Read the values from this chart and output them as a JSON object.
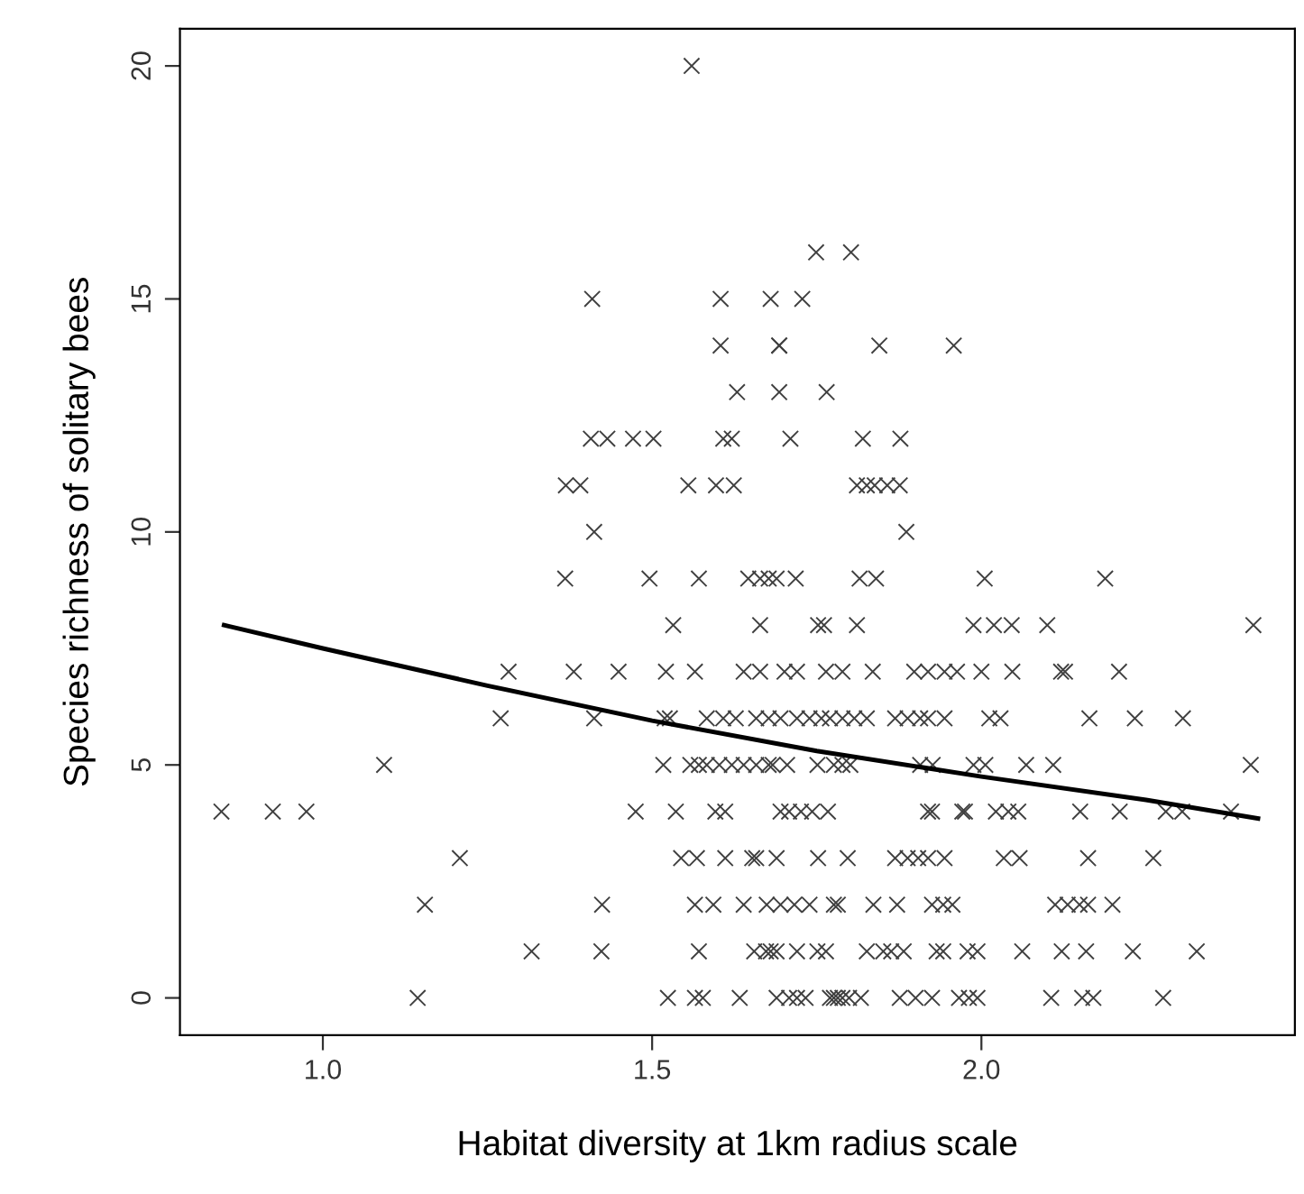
{
  "chart_data": {
    "type": "scatter",
    "xlabel": "Habitat diversity at 1km radius scale",
    "ylabel": "Species richness of solitary bees",
    "xlim": [
      0.783,
      2.476
    ],
    "ylim": [
      -0.8,
      20.8
    ],
    "xticks": [
      {
        "value": 1.0,
        "label": "1.0"
      },
      {
        "value": 1.5,
        "label": "1.5"
      },
      {
        "value": 2.0,
        "label": "2.0"
      }
    ],
    "yticks": [
      0,
      5,
      10,
      15,
      20
    ],
    "grid": false,
    "legend": false,
    "series": [
      {
        "marker": "cross",
        "color": "#404040",
        "x": [
          1.56,
          1.749,
          1.802,
          1.409,
          1.604,
          1.68,
          1.728,
          1.604,
          1.693,
          1.693,
          1.845,
          1.958,
          1.629,
          1.693,
          1.765,
          1.407,
          1.432,
          1.471,
          1.502,
          1.608,
          1.621,
          1.71,
          1.82,
          1.877,
          1.369,
          1.391,
          1.555,
          1.597,
          1.624,
          1.811,
          1.826,
          1.838,
          1.857,
          1.876,
          1.412,
          1.886,
          1.368,
          1.496,
          1.571,
          1.646,
          1.664,
          1.677,
          1.689,
          1.718,
          1.815,
          1.84,
          2.005,
          2.188,
          1.532,
          1.664,
          1.752,
          1.761,
          1.811,
          1.988,
          2.019,
          2.046,
          2.1,
          2.413,
          1.282,
          1.381,
          1.449,
          1.521,
          1.565,
          1.639,
          1.664,
          1.701,
          1.72,
          1.764,
          1.789,
          1.835,
          1.898,
          1.919,
          1.944,
          1.963,
          2.0,
          2.047,
          2.121,
          2.127,
          2.209,
          1.27,
          1.412,
          1.519,
          1.527,
          1.583,
          1.608,
          1.627,
          1.658,
          1.677,
          1.695,
          1.72,
          1.739,
          1.757,
          1.77,
          1.789,
          1.807,
          1.826,
          1.869,
          1.888,
          1.907,
          1.919,
          1.944,
          2.012,
          2.029,
          2.164,
          2.233,
          2.306,
          1.093,
          1.517,
          1.558,
          1.571,
          1.583,
          1.602,
          1.621,
          1.639,
          1.658,
          1.677,
          1.683,
          1.705,
          1.751,
          1.776,
          1.789,
          1.801,
          1.907,
          1.926,
          1.988,
          2.006,
          2.068,
          2.109,
          2.409,
          0.846,
          0.924,
          0.975,
          1.475,
          1.536,
          1.596,
          1.611,
          1.695,
          1.708,
          1.726,
          1.743,
          1.767,
          1.919,
          1.925,
          1.971,
          1.975,
          2.022,
          2.041,
          2.056,
          2.15,
          2.21,
          2.28,
          2.305,
          2.379,
          1.208,
          1.544,
          1.568,
          1.611,
          1.652,
          1.658,
          1.689,
          1.752,
          1.797,
          1.869,
          1.888,
          1.904,
          1.919,
          1.944,
          2.034,
          2.058,
          2.162,
          2.261,
          1.155,
          1.424,
          1.565,
          1.593,
          1.639,
          1.674,
          1.695,
          1.716,
          1.739,
          1.776,
          1.782,
          1.836,
          1.872,
          1.925,
          1.942,
          1.956,
          2.112,
          2.131,
          2.149,
          2.162,
          2.199,
          1.317,
          1.423,
          1.571,
          1.655,
          1.673,
          1.68,
          1.689,
          1.72,
          1.751,
          1.764,
          1.826,
          1.851,
          1.863,
          1.882,
          1.932,
          1.942,
          1.979,
          1.994,
          2.062,
          2.122,
          2.159,
          2.23,
          2.327,
          1.144,
          1.524,
          1.565,
          1.577,
          1.633,
          1.689,
          1.708,
          1.72,
          1.733,
          1.77,
          1.776,
          1.782,
          1.789,
          1.799,
          1.817,
          1.876,
          1.9,
          1.925,
          1.966,
          1.981,
          1.994,
          2.106,
          2.153,
          2.17,
          2.276
        ],
        "values": [
          20,
          16,
          16,
          15,
          15,
          15,
          15,
          14,
          14,
          14,
          14,
          14,
          13,
          13,
          13,
          12,
          12,
          12,
          12,
          12,
          12,
          12,
          12,
          12,
          11,
          11,
          11,
          11,
          11,
          11,
          11,
          11,
          11,
          11,
          10,
          10,
          9,
          9,
          9,
          9,
          9,
          9,
          9,
          9,
          9,
          9,
          9,
          9,
          8,
          8,
          8,
          8,
          8,
          8,
          8,
          8,
          8,
          8,
          7,
          7,
          7,
          7,
          7,
          7,
          7,
          7,
          7,
          7,
          7,
          7,
          7,
          7,
          7,
          7,
          7,
          7,
          7,
          7,
          7,
          6,
          6,
          6,
          6,
          6,
          6,
          6,
          6,
          6,
          6,
          6,
          6,
          6,
          6,
          6,
          6,
          6,
          6,
          6,
          6,
          6,
          6,
          6,
          6,
          6,
          6,
          6,
          5,
          5,
          5,
          5,
          5,
          5,
          5,
          5,
          5,
          5,
          5,
          5,
          5,
          5,
          5,
          5,
          5,
          5,
          5,
          5,
          5,
          5,
          5,
          4,
          4,
          4,
          4,
          4,
          4,
          4,
          4,
          4,
          4,
          4,
          4,
          4,
          4,
          4,
          4,
          4,
          4,
          4,
          4,
          4,
          4,
          4,
          4,
          3,
          3,
          3,
          3,
          3,
          3,
          3,
          3,
          3,
          3,
          3,
          3,
          3,
          3,
          3,
          3,
          3,
          3,
          2,
          2,
          2,
          2,
          2,
          2,
          2,
          2,
          2,
          2,
          2,
          2,
          2,
          2,
          2,
          2,
          2,
          2,
          2,
          2,
          2,
          1,
          1,
          1,
          1,
          1,
          1,
          1,
          1,
          1,
          1,
          1,
          1,
          1,
          1,
          1,
          1,
          1,
          1,
          1,
          1,
          1,
          1,
          1,
          0,
          0,
          0,
          0,
          0,
          0,
          0,
          0,
          0,
          0,
          0,
          0,
          0,
          0,
          0,
          0,
          0,
          0,
          0,
          0,
          0,
          0,
          0,
          0,
          0
        ]
      },
      {
        "type": "line",
        "color": "#000000",
        "line_style": "solid",
        "x": [
          0.85,
          1.0,
          1.25,
          1.5,
          1.75,
          2.0,
          2.25,
          2.42
        ],
        "values": [
          8.0,
          7.5,
          6.7,
          5.95,
          5.3,
          4.75,
          4.25,
          3.85
        ]
      }
    ]
  }
}
